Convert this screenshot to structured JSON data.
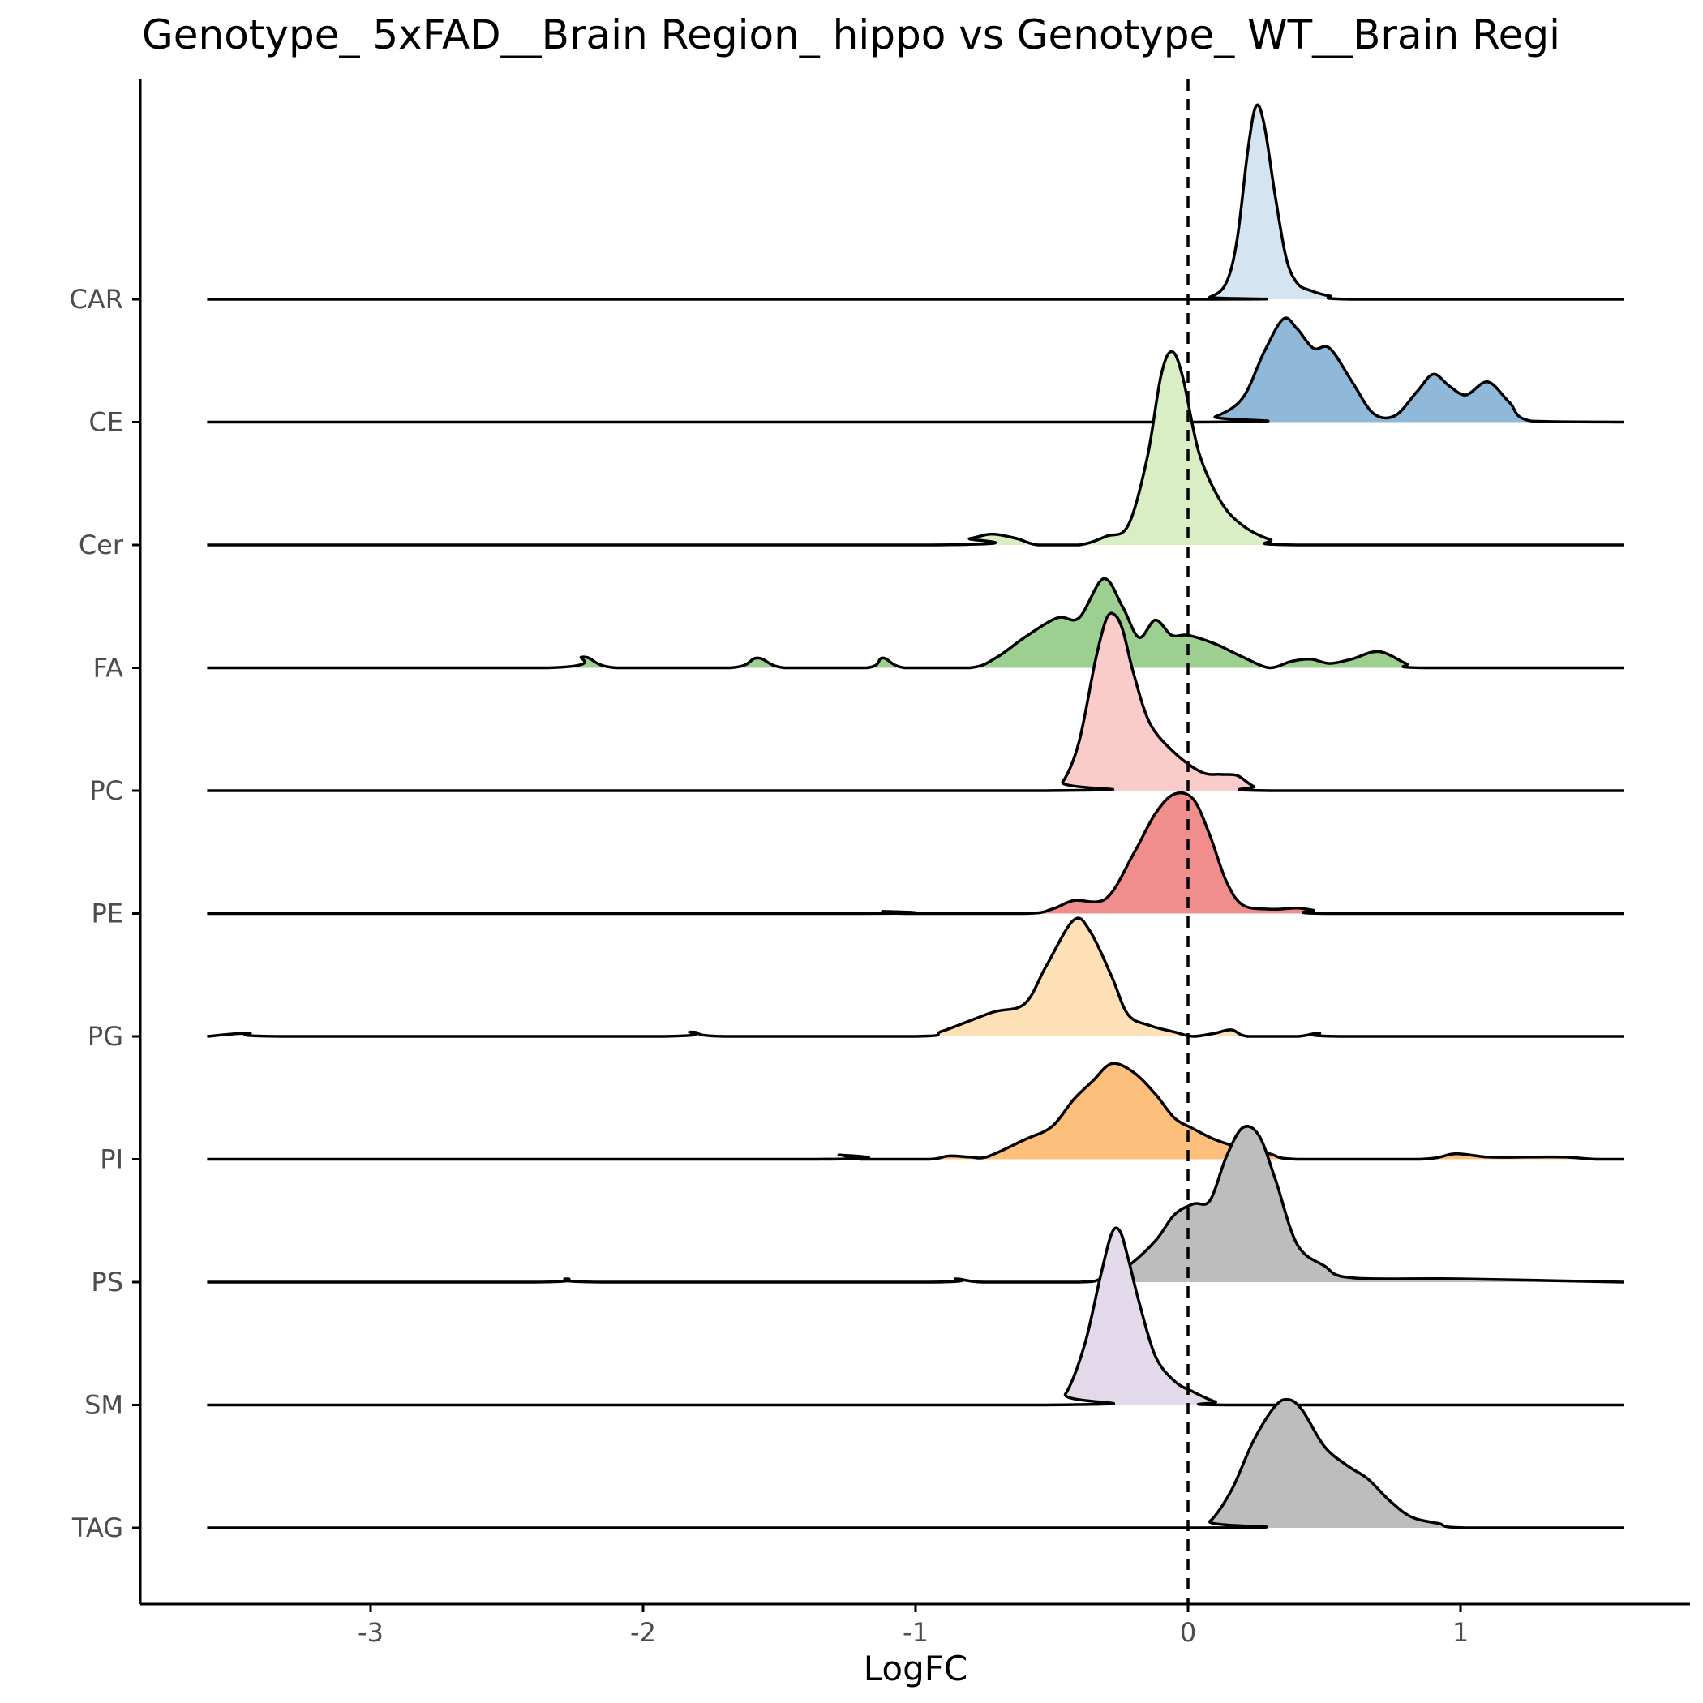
{
  "chart_data": {
    "type": "ridgeline",
    "title": "Genotype_ 5xFAD__Brain Region_ hippo vs Genotype_ WT__Brain Regi",
    "xlabel": "LogFC",
    "ylabel": "",
    "xlim": [
      -3.85,
      1.85
    ],
    "x_ticks": [
      -3,
      -2,
      -1,
      0,
      1
    ],
    "x_tick_labels": [
      "-3",
      "-2",
      "-1",
      "0",
      "1"
    ],
    "reference_line": {
      "x": 0,
      "style": "dashed"
    },
    "grid": false,
    "legend": "none",
    "series": [
      {
        "name": "CAR",
        "color": "#d4e4f1",
        "x": [
          -3.6,
          0.0,
          0.08,
          0.14,
          0.18,
          0.22,
          0.25,
          0.28,
          0.32,
          0.36,
          0.4,
          0.45,
          0.52,
          0.62,
          1.6
        ],
        "density": [
          0,
          0,
          0.02,
          0.15,
          0.55,
          1.38,
          1.78,
          1.6,
          0.95,
          0.38,
          0.15,
          0.08,
          0.03,
          0,
          0
        ]
      },
      {
        "name": "CE",
        "color": "#90b9d9",
        "x": [
          -3.6,
          0.0,
          0.1,
          0.2,
          0.28,
          0.35,
          0.4,
          0.46,
          0.52,
          0.6,
          0.68,
          0.76,
          0.84,
          0.9,
          0.96,
          1.02,
          1.1,
          1.18,
          1.26,
          1.6
        ],
        "density": [
          0,
          0,
          0.05,
          0.22,
          0.65,
          0.95,
          0.86,
          0.68,
          0.68,
          0.38,
          0.08,
          0.06,
          0.28,
          0.44,
          0.33,
          0.25,
          0.37,
          0.18,
          0.01,
          0
        ]
      },
      {
        "name": "Cer",
        "color": "#d9eec5",
        "x": [
          -3.6,
          -0.95,
          -0.8,
          -0.72,
          -0.63,
          -0.55,
          -0.4,
          -0.3,
          -0.22,
          -0.15,
          -0.1,
          -0.06,
          -0.02,
          0.04,
          0.12,
          0.2,
          0.3,
          0.4,
          1.6
        ],
        "density": [
          0,
          0,
          0.06,
          0.1,
          0.06,
          0,
          0,
          0.08,
          0.18,
          0.8,
          1.55,
          1.78,
          1.55,
          0.85,
          0.4,
          0.18,
          0.05,
          0,
          0
        ]
      },
      {
        "name": "FA",
        "color": "#9dcf90",
        "x": [
          -3.6,
          -2.35,
          -2.22,
          -2.1,
          -1.68,
          -1.58,
          -1.48,
          -1.18,
          -1.12,
          -1.04,
          -0.8,
          -0.7,
          -0.6,
          -0.48,
          -0.4,
          -0.31,
          -0.24,
          -0.18,
          -0.12,
          -0.06,
          0.0,
          0.1,
          0.2,
          0.3,
          0.38,
          0.45,
          0.52,
          0.6,
          0.7,
          0.8,
          0.86,
          1.6
        ],
        "density": [
          0,
          0,
          0.1,
          0,
          0,
          0.09,
          0,
          0,
          0.09,
          0,
          0,
          0.1,
          0.28,
          0.46,
          0.46,
          0.82,
          0.56,
          0.28,
          0.44,
          0.3,
          0.3,
          0.22,
          0.1,
          0,
          0.06,
          0.08,
          0.04,
          0.08,
          0.15,
          0.04,
          0,
          0
        ]
      },
      {
        "name": "PC",
        "color": "#f9cbc9",
        "x": [
          -3.6,
          -0.52,
          -0.46,
          -0.4,
          -0.34,
          -0.3,
          -0.27,
          -0.24,
          -0.2,
          -0.14,
          -0.05,
          0.05,
          0.12,
          0.18,
          0.24,
          0.3,
          1.6
        ],
        "density": [
          0,
          0,
          0.08,
          0.45,
          1.2,
          1.58,
          1.62,
          1.48,
          1.08,
          0.62,
          0.35,
          0.17,
          0.15,
          0.14,
          0.04,
          0,
          0
        ]
      },
      {
        "name": "PE",
        "color": "#f08d8d",
        "x": [
          -3.6,
          -1.2,
          -1.12,
          -1.04,
          -0.6,
          -0.5,
          -0.42,
          -0.3,
          -0.2,
          -0.12,
          -0.05,
          0.02,
          0.08,
          0.14,
          0.2,
          0.3,
          0.4,
          0.46,
          0.52,
          1.6
        ],
        "density": [
          0,
          0,
          0.02,
          0,
          0,
          0.04,
          0.12,
          0.14,
          0.55,
          0.92,
          1.1,
          1.05,
          0.72,
          0.3,
          0.08,
          0.04,
          0.05,
          0.03,
          0,
          0
        ]
      },
      {
        "name": "PG",
        "color": "#fee0b7",
        "x": [
          -3.6,
          -3.45,
          -3.32,
          -1.95,
          -1.82,
          -1.7,
          -1.0,
          -0.9,
          -0.72,
          -0.6,
          -0.52,
          -0.42,
          -0.36,
          -0.28,
          -0.22,
          -0.14,
          -0.05,
          0.02,
          0.1,
          0.16,
          0.22,
          0.4,
          0.48,
          0.56,
          1.6
        ],
        "density": [
          0,
          0.03,
          0,
          0,
          0.04,
          0,
          0,
          0.05,
          0.22,
          0.3,
          0.65,
          1.07,
          0.97,
          0.55,
          0.2,
          0.1,
          0.04,
          0,
          0.03,
          0.06,
          0,
          0,
          0.03,
          0,
          0
        ]
      },
      {
        "name": "PI",
        "color": "#fdbf7c",
        "x": [
          -3.6,
          -1.36,
          -1.28,
          -1.2,
          -0.95,
          -0.88,
          -0.8,
          -0.74,
          -0.6,
          -0.5,
          -0.42,
          -0.35,
          -0.28,
          -0.2,
          -0.12,
          -0.05,
          0.02,
          0.1,
          0.2,
          0.3,
          0.4,
          0.85,
          0.98,
          1.1,
          1.25,
          1.38,
          1.5,
          1.6
        ],
        "density": [
          0,
          0,
          0.04,
          0,
          0,
          0.03,
          0.02,
          0.02,
          0.18,
          0.3,
          0.55,
          0.72,
          0.88,
          0.8,
          0.6,
          0.38,
          0.28,
          0.18,
          0.1,
          0.05,
          0,
          0,
          0.05,
          0.02,
          0.02,
          0.02,
          0,
          0
        ]
      },
      {
        "name": "PS",
        "color": "#bdbdbd",
        "x": [
          -3.6,
          -2.4,
          -2.28,
          -2.15,
          -0.95,
          -0.85,
          -0.75,
          -0.4,
          -0.32,
          -0.22,
          -0.12,
          -0.05,
          0.02,
          0.08,
          0.14,
          0.2,
          0.26,
          0.32,
          0.4,
          0.5,
          0.6,
          1.0,
          1.6
        ],
        "density": [
          0,
          0,
          0.03,
          0,
          0,
          0.03,
          0,
          0,
          0.03,
          0.15,
          0.38,
          0.62,
          0.72,
          0.75,
          1.15,
          1.42,
          1.35,
          0.95,
          0.35,
          0.15,
          0.04,
          0.03,
          0
        ]
      },
      {
        "name": "SM",
        "color": "#e2d9ea",
        "x": [
          -3.6,
          -0.52,
          -0.45,
          -0.38,
          -0.32,
          -0.28,
          -0.25,
          -0.22,
          -0.18,
          -0.12,
          -0.05,
          0.02,
          0.1,
          0.16,
          1.6
        ],
        "density": [
          0,
          0,
          0.1,
          0.55,
          1.2,
          1.58,
          1.6,
          1.35,
          0.95,
          0.45,
          0.22,
          0.12,
          0.03,
          0,
          0
        ]
      },
      {
        "name": "TAG",
        "color": "#bdbdbd",
        "x": [
          -3.6,
          0.0,
          0.08,
          0.16,
          0.24,
          0.32,
          0.37,
          0.42,
          0.5,
          0.58,
          0.66,
          0.74,
          0.82,
          0.92,
          1.02,
          1.6
        ],
        "density": [
          0,
          0,
          0.06,
          0.35,
          0.8,
          1.12,
          1.18,
          1.08,
          0.75,
          0.58,
          0.45,
          0.25,
          0.1,
          0.04,
          0,
          0
        ]
      }
    ]
  }
}
